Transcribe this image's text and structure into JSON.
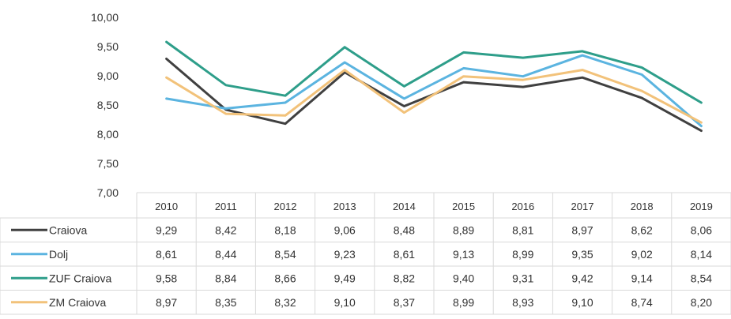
{
  "chart_data": {
    "type": "line",
    "ylim": [
      7.0,
      10.0
    ],
    "yticks": [
      "10,00",
      "9,50",
      "9,00",
      "8,50",
      "8,00",
      "7,50",
      "7,00"
    ],
    "ytick_values": [
      10.0,
      9.5,
      9.0,
      8.5,
      8.0,
      7.5,
      7.0
    ],
    "categories": [
      "2010",
      "2011",
      "2012",
      "2013",
      "2014",
      "2015",
      "2016",
      "2017",
      "2018",
      "2019"
    ],
    "legend_position": "bottom (data table)",
    "grid": false,
    "series": [
      {
        "name": "Craiova",
        "color": "#404040",
        "values": [
          9.29,
          8.42,
          8.18,
          9.06,
          8.48,
          8.89,
          8.81,
          8.97,
          8.62,
          8.06
        ],
        "labels": [
          "9,29",
          "8,42",
          "8,18",
          "9,06",
          "8,48",
          "8,89",
          "8,81",
          "8,97",
          "8,62",
          "8,06"
        ]
      },
      {
        "name": "Dolj",
        "color": "#5BB4E0",
        "values": [
          8.61,
          8.44,
          8.54,
          9.23,
          8.61,
          9.13,
          8.99,
          9.35,
          9.02,
          8.14
        ],
        "labels": [
          "8,61",
          "8,44",
          "8,54",
          "9,23",
          "8,61",
          "9,13",
          "8,99",
          "9,35",
          "9,02",
          "8,14"
        ]
      },
      {
        "name": "ZUF Craiova",
        "color": "#2E9E8A",
        "values": [
          9.58,
          8.84,
          8.66,
          9.49,
          8.82,
          9.4,
          9.31,
          9.42,
          9.14,
          8.54
        ],
        "labels": [
          "9,58",
          "8,84",
          "8,66",
          "9,49",
          "8,82",
          "9,40",
          "9,31",
          "9,42",
          "9,14",
          "8,54"
        ]
      },
      {
        "name": "ZM Craiova",
        "color": "#F2C27A",
        "values": [
          8.97,
          8.35,
          8.32,
          9.1,
          8.37,
          8.99,
          8.93,
          9.1,
          8.74,
          8.2
        ],
        "labels": [
          "8,97",
          "8,35",
          "8,32",
          "9,10",
          "8,37",
          "8,99",
          "8,93",
          "9,10",
          "8,74",
          "8,20"
        ]
      }
    ]
  }
}
